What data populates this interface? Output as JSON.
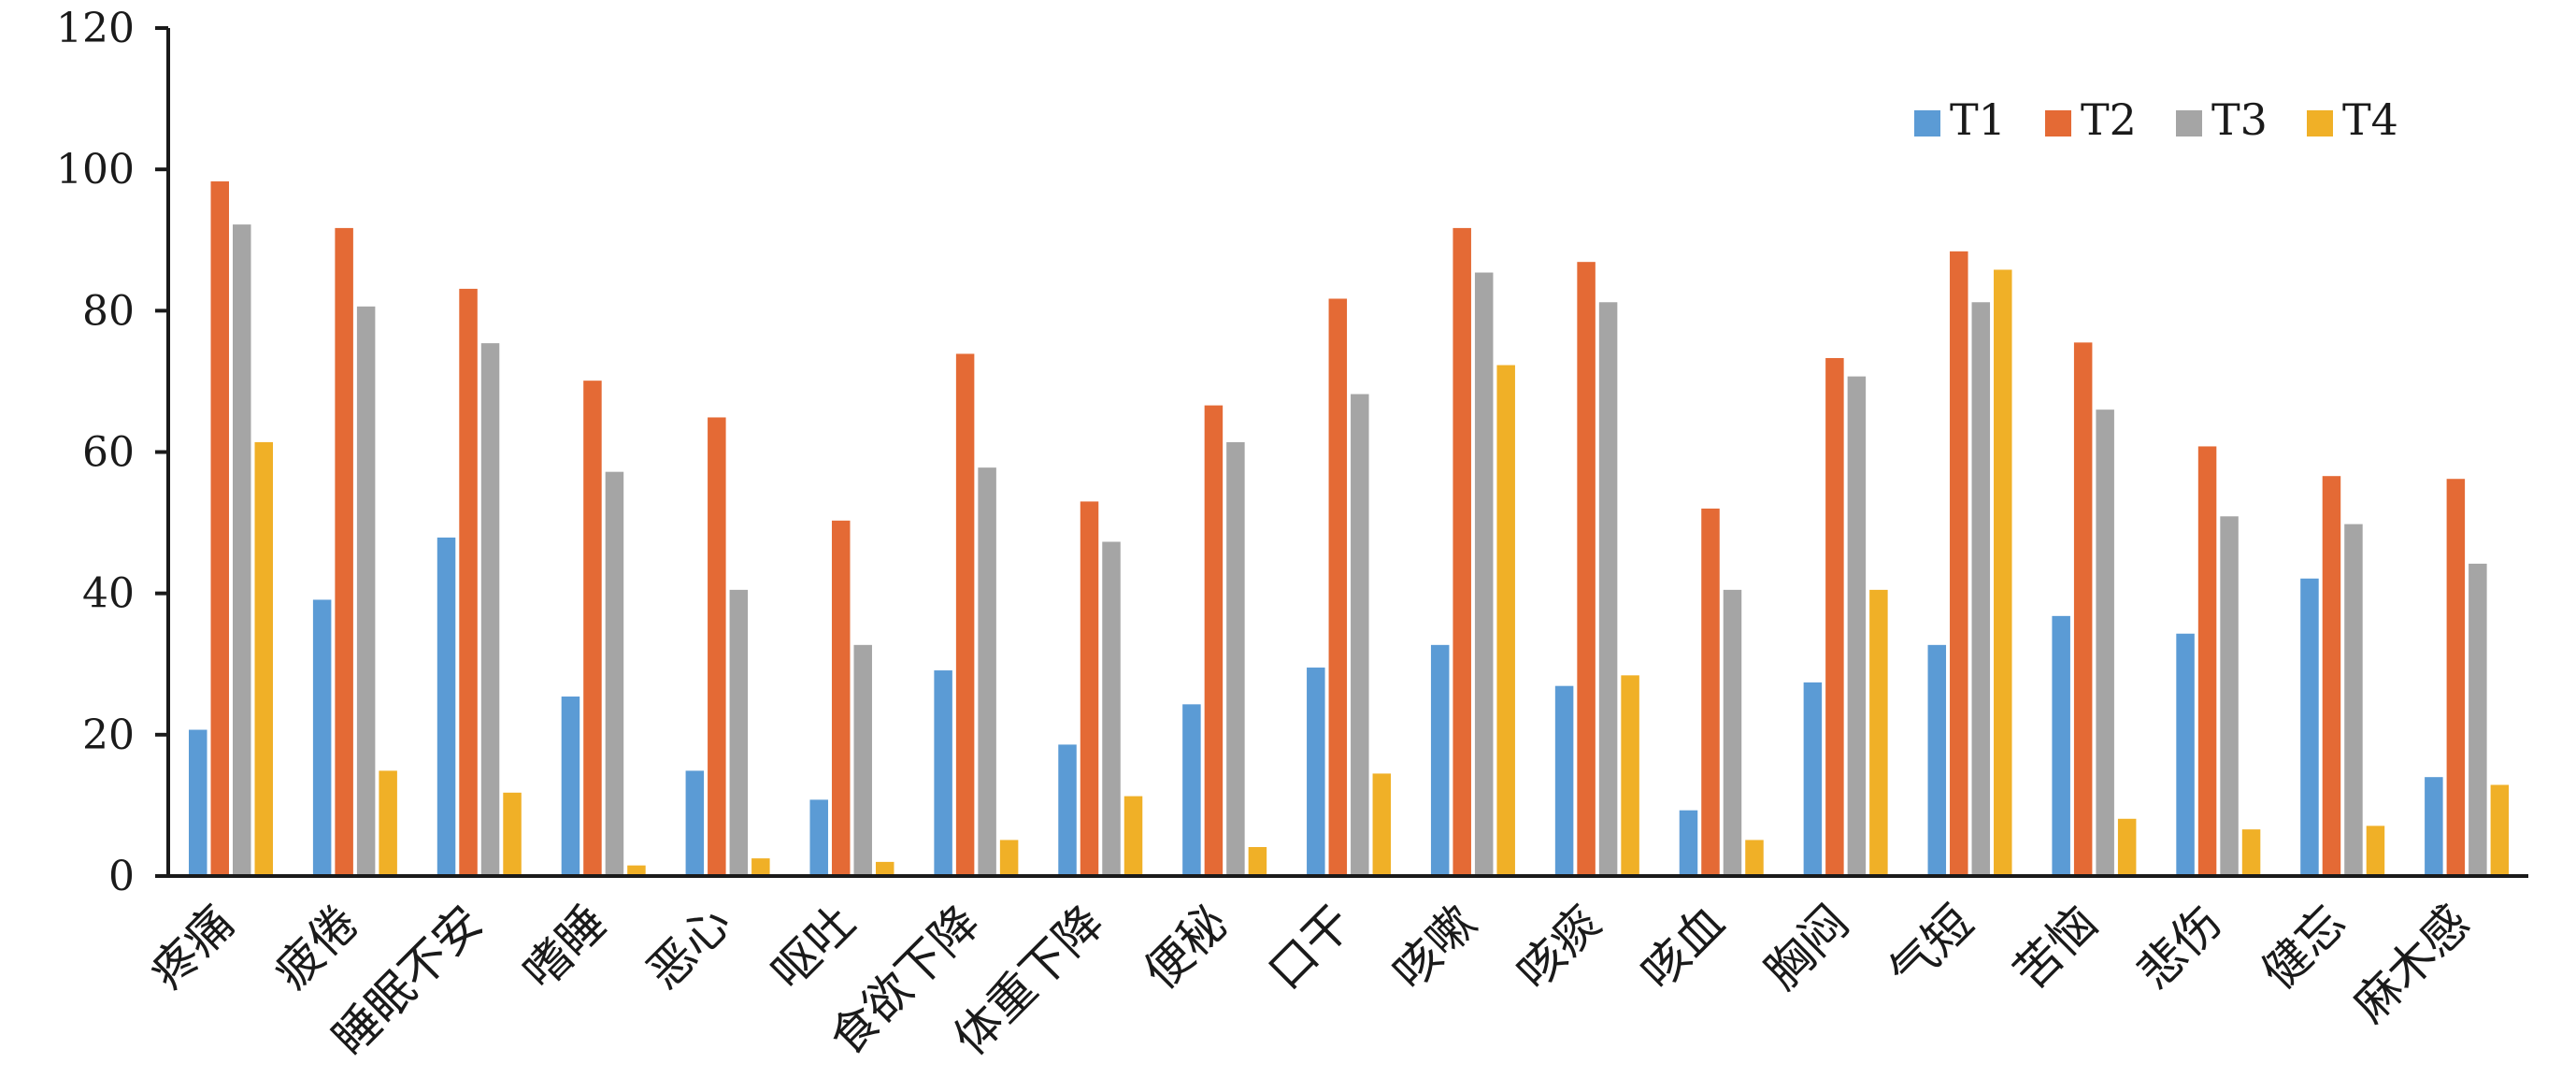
{
  "chart_data": {
    "type": "bar",
    "title": "",
    "xlabel": "",
    "ylabel": "",
    "ylim": [
      0,
      120
    ],
    "yticks": [
      0,
      20,
      40,
      60,
      80,
      100,
      120
    ],
    "grid": false,
    "legend_position": "top-right",
    "categories": [
      "疼痛",
      "疲倦",
      "睡眠不安",
      "嗜睡",
      "恶心",
      "呕吐",
      "食欲下降",
      "体重下降",
      "便秘",
      "口干",
      "咳嗽",
      "咳痰",
      "咳血",
      "胸闷",
      "气短",
      "苦恼",
      "悲伤",
      "健忘",
      "麻木感"
    ],
    "series": [
      {
        "name": "T1",
        "color": "#5b9bd5",
        "values": [
          20.7,
          39.1,
          47.9,
          25.4,
          14.9,
          10.8,
          29.1,
          18.6,
          24.3,
          29.5,
          32.7,
          26.9,
          9.3,
          27.4,
          32.7,
          36.8,
          34.3,
          42.1,
          14.0
        ]
      },
      {
        "name": "T2",
        "color": "#e46a35",
        "values": [
          98.3,
          91.7,
          83.1,
          70.1,
          64.9,
          50.3,
          73.9,
          53.0,
          66.6,
          81.7,
          91.7,
          86.9,
          52.0,
          73.3,
          88.4,
          75.5,
          60.8,
          56.6,
          56.2
        ]
      },
      {
        "name": "T3",
        "color": "#a5a5a5",
        "values": [
          92.2,
          80.6,
          75.4,
          57.2,
          40.5,
          32.7,
          57.8,
          47.3,
          61.4,
          68.2,
          85.4,
          81.2,
          40.5,
          70.7,
          81.2,
          66.0,
          50.9,
          49.8,
          44.2
        ]
      },
      {
        "name": "T4",
        "color": "#f0b027",
        "values": [
          61.4,
          14.9,
          11.8,
          1.5,
          2.5,
          2.0,
          5.1,
          11.3,
          4.1,
          14.5,
          72.3,
          28.4,
          5.1,
          40.5,
          85.8,
          8.1,
          6.6,
          7.1,
          12.9
        ]
      }
    ]
  }
}
